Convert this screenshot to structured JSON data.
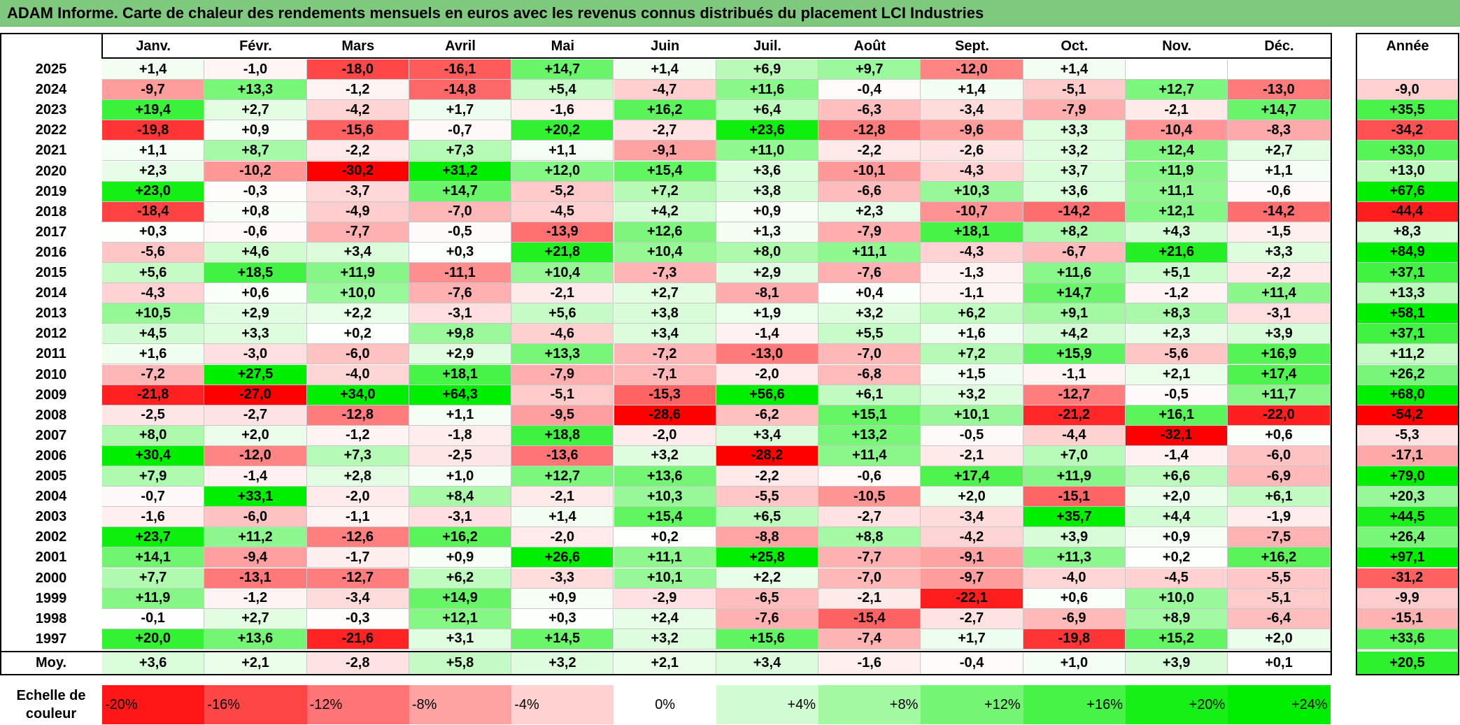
{
  "title": "ADAM Informe. Carte de chaleur des rendements mensuels en euros avec les revenus connus distribués du placement LCI Industries",
  "chart_data": {
    "type": "heatmap",
    "columns": [
      "Janv.",
      "Févr.",
      "Mars",
      "Avril",
      "Mai",
      "Juin",
      "Juil.",
      "Août",
      "Sept.",
      "Oct.",
      "Nov.",
      "Déc."
    ],
    "annual_header": "Année",
    "average_label": "Moy.",
    "rows": [
      {
        "year": "2025",
        "values": [
          "+1,4",
          "-1,0",
          "-18,0",
          "-16,1",
          "+14,7",
          "+1,4",
          "+6,9",
          "+9,7",
          "-12,0",
          "+1,4",
          "",
          ""
        ],
        "annual": ""
      },
      {
        "year": "2024",
        "values": [
          "-9,7",
          "+13,3",
          "-1,2",
          "-14,8",
          "+5,4",
          "-4,7",
          "+11,6",
          "-0,4",
          "+1,4",
          "-5,1",
          "+12,7",
          "-13,0"
        ],
        "annual": "-9,0"
      },
      {
        "year": "2023",
        "values": [
          "+19,4",
          "+2,7",
          "-4,2",
          "+1,7",
          "-1,6",
          "+16,2",
          "+6,4",
          "-6,3",
          "-3,4",
          "-7,9",
          "-2,1",
          "+14,7"
        ],
        "annual": "+35,5"
      },
      {
        "year": "2022",
        "values": [
          "-19,8",
          "+0,9",
          "-15,6",
          "-0,7",
          "+20,2",
          "-2,7",
          "+23,6",
          "-12,8",
          "-9,6",
          "+3,3",
          "-10,4",
          "-8,3"
        ],
        "annual": "-34,2"
      },
      {
        "year": "2021",
        "values": [
          "+1,1",
          "+8,7",
          "-2,2",
          "+7,3",
          "+1,1",
          "-9,1",
          "+11,0",
          "-2,2",
          "-2,6",
          "+3,2",
          "+12,4",
          "+2,7"
        ],
        "annual": "+33,0"
      },
      {
        "year": "2020",
        "values": [
          "+2,3",
          "-10,2",
          "-30,2",
          "+31,2",
          "+12,0",
          "+15,4",
          "+3,6",
          "-10,1",
          "-4,3",
          "+3,7",
          "+11,9",
          "+1,1"
        ],
        "annual": "+13,0"
      },
      {
        "year": "2019",
        "values": [
          "+23,0",
          "-0,3",
          "-3,7",
          "+14,7",
          "-5,2",
          "+7,2",
          "+3,8",
          "-6,6",
          "+10,3",
          "+3,6",
          "+11,1",
          "-0,6"
        ],
        "annual": "+67,6"
      },
      {
        "year": "2018",
        "values": [
          "-18,4",
          "+0,8",
          "-4,9",
          "-7,0",
          "-4,5",
          "+4,2",
          "+0,9",
          "+2,3",
          "-10,7",
          "-14,2",
          "+12,1",
          "-14,2"
        ],
        "annual": "-44,4"
      },
      {
        "year": "2017",
        "values": [
          "+0,3",
          "-0,6",
          "-7,7",
          "-0,5",
          "-13,9",
          "+12,6",
          "+1,3",
          "-7,9",
          "+18,1",
          "+8,2",
          "+4,3",
          "-1,5"
        ],
        "annual": "+8,3"
      },
      {
        "year": "2016",
        "values": [
          "-5,6",
          "+4,6",
          "+3,4",
          "+0,3",
          "+21,8",
          "+10,4",
          "+8,0",
          "+11,1",
          "-4,3",
          "-6,7",
          "+21,6",
          "+3,3"
        ],
        "annual": "+84,9"
      },
      {
        "year": "2015",
        "values": [
          "+5,6",
          "+18,5",
          "+11,9",
          "-11,1",
          "+10,4",
          "-7,3",
          "+2,9",
          "-7,6",
          "-1,3",
          "+11,6",
          "+5,1",
          "-2,2"
        ],
        "annual": "+37,1"
      },
      {
        "year": "2014",
        "values": [
          "-4,3",
          "+0,6",
          "+10,0",
          "-7,6",
          "-2,1",
          "+2,7",
          "-8,1",
          "+0,4",
          "-1,1",
          "+14,7",
          "-1,2",
          "+11,4"
        ],
        "annual": "+13,3"
      },
      {
        "year": "2013",
        "values": [
          "+10,5",
          "+2,9",
          "+2,2",
          "-3,1",
          "+5,6",
          "+3,8",
          "+1,9",
          "+3,2",
          "+6,2",
          "+9,1",
          "+8,3",
          "-3,1"
        ],
        "annual": "+58,1"
      },
      {
        "year": "2012",
        "values": [
          "+4,5",
          "+3,3",
          "+0,2",
          "+9,8",
          "-4,6",
          "+3,4",
          "-1,4",
          "+5,5",
          "+1,6",
          "+4,2",
          "+2,3",
          "+3,9"
        ],
        "annual": "+37,1"
      },
      {
        "year": "2011",
        "values": [
          "+1,6",
          "-3,0",
          "-6,0",
          "+2,9",
          "+13,3",
          "-7,2",
          "-13,0",
          "-7,0",
          "+7,2",
          "+15,9",
          "-5,6",
          "+16,9"
        ],
        "annual": "+11,2"
      },
      {
        "year": "2010",
        "values": [
          "-7,2",
          "+27,5",
          "-4,0",
          "+18,1",
          "-7,9",
          "-7,1",
          "-2,0",
          "-6,8",
          "+1,5",
          "-1,1",
          "+2,1",
          "+17,4"
        ],
        "annual": "+26,2"
      },
      {
        "year": "2009",
        "values": [
          "-21,8",
          "-27,0",
          "+34,0",
          "+64,3",
          "-5,1",
          "-15,3",
          "+56,6",
          "+6,1",
          "+3,2",
          "-12,7",
          "-0,5",
          "+11,7"
        ],
        "annual": "+68,0"
      },
      {
        "year": "2008",
        "values": [
          "-2,5",
          "-2,7",
          "-12,8",
          "+1,1",
          "-9,5",
          "-28,6",
          "-6,2",
          "+15,1",
          "+10,1",
          "-21,2",
          "+16,1",
          "-22,0"
        ],
        "annual": "-54,2"
      },
      {
        "year": "2007",
        "values": [
          "+8,0",
          "+2,0",
          "-1,2",
          "-1,8",
          "+18,8",
          "-2,0",
          "+3,4",
          "+13,2",
          "-0,5",
          "-4,4",
          "-32,1",
          "+0,6"
        ],
        "annual": "-5,3"
      },
      {
        "year": "2006",
        "values": [
          "+30,4",
          "-12,0",
          "+7,3",
          "-2,5",
          "-13,6",
          "+3,2",
          "-28,2",
          "+11,4",
          "-2,1",
          "+7,0",
          "-1,4",
          "-6,0"
        ],
        "annual": "-17,1"
      },
      {
        "year": "2005",
        "values": [
          "+7,9",
          "-1,4",
          "+2,8",
          "+1,0",
          "+12,7",
          "+13,6",
          "-2,2",
          "-0,6",
          "+17,4",
          "+11,9",
          "+6,6",
          "-6,9"
        ],
        "annual": "+79,0"
      },
      {
        "year": "2004",
        "values": [
          "-0,7",
          "+33,1",
          "-2,0",
          "+8,4",
          "-2,1",
          "+10,3",
          "-5,5",
          "-10,5",
          "+2,0",
          "-15,1",
          "+2,0",
          "+6,1"
        ],
        "annual": "+20,3"
      },
      {
        "year": "2003",
        "values": [
          "-1,6",
          "-6,0",
          "-1,1",
          "-3,1",
          "+1,4",
          "+15,4",
          "+6,5",
          "-2,7",
          "-3,4",
          "+35,7",
          "+4,4",
          "-1,9"
        ],
        "annual": "+44,5"
      },
      {
        "year": "2002",
        "values": [
          "+23,7",
          "+11,2",
          "-12,6",
          "+16,2",
          "-2,0",
          "+0,2",
          "-8,8",
          "+8,8",
          "-4,2",
          "+3,9",
          "+0,9",
          "-7,5"
        ],
        "annual": "+26,4"
      },
      {
        "year": "2001",
        "values": [
          "+14,1",
          "-9,4",
          "-1,7",
          "+0,9",
          "+26,6",
          "+11,1",
          "+25,8",
          "-7,7",
          "-9,1",
          "+11,3",
          "+0,2",
          "+16,2"
        ],
        "annual": "+97,1"
      },
      {
        "year": "2000",
        "values": [
          "+7,7",
          "-13,1",
          "-12,7",
          "+6,2",
          "-3,3",
          "+10,1",
          "+2,2",
          "-7,0",
          "-9,7",
          "-4,0",
          "-4,5",
          "-5,5"
        ],
        "annual": "-31,2"
      },
      {
        "year": "1999",
        "values": [
          "+11,9",
          "-1,2",
          "-3,4",
          "+14,9",
          "+0,9",
          "-2,9",
          "-6,5",
          "-2,1",
          "-22,1",
          "+0,6",
          "+10,0",
          "-5,1"
        ],
        "annual": "-9,9"
      },
      {
        "year": "1998",
        "values": [
          "-0,1",
          "+2,7",
          "-0,3",
          "+12,1",
          "+0,3",
          "+2,4",
          "-7,6",
          "-15,4",
          "-2,7",
          "-6,9",
          "+8,9",
          "-6,4"
        ],
        "annual": "-15,1"
      },
      {
        "year": "1997",
        "values": [
          "+20,0",
          "+13,6",
          "-21,6",
          "+3,1",
          "+14,5",
          "+3,2",
          "+15,6",
          "-7,4",
          "+1,7",
          "-19,8",
          "+15,2",
          "+2,0"
        ],
        "annual": "+33,6"
      }
    ],
    "averages": [
      "+3,6",
      "+2,1",
      "-2,8",
      "+5,8",
      "+3,2",
      "+2,1",
      "+3,4",
      "-1,6",
      "-0,4",
      "+1,0",
      "+3,9",
      "+0,1"
    ],
    "average_annual": "+20,5",
    "scale_label": "Echelle de couleur",
    "scale": [
      "-20%",
      "-16%",
      "-12%",
      "-8%",
      "-4%",
      "0%",
      "+4%",
      "+8%",
      "+12%",
      "+16%",
      "+20%",
      "+24%"
    ],
    "colors": {
      "negative_max": "#ff0000",
      "neutral": "#ffffff",
      "positive_max": "#00ee00",
      "title_bar": "#7fc97f"
    }
  }
}
